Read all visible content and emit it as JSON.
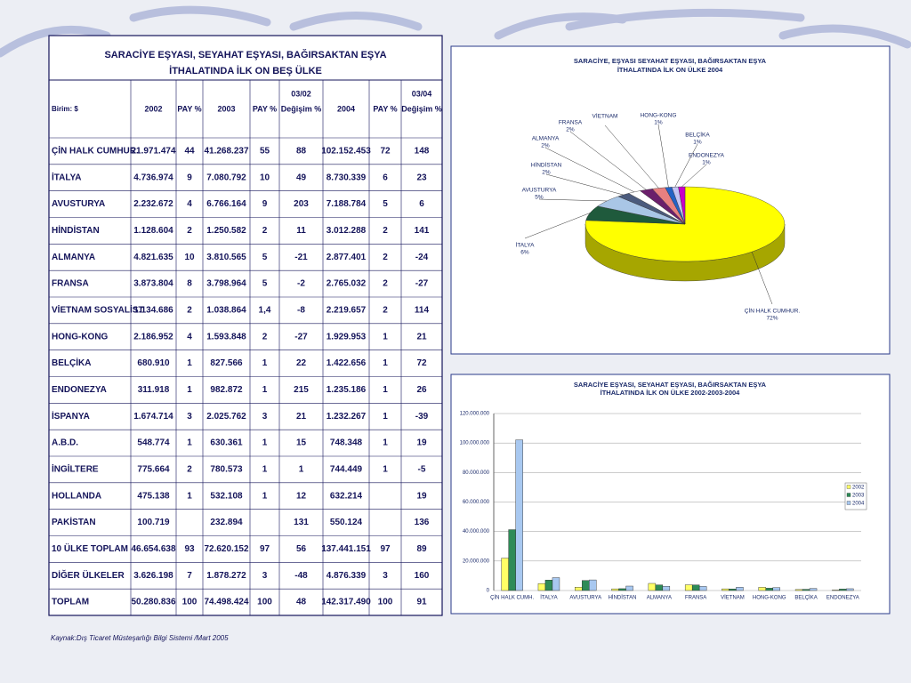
{
  "table": {
    "title": [
      "SARACİYE EŞYASI, SEYAHAT EŞYASI, BAĞIRSAKTAN EŞYA",
      "İTHALATINDA İLK ON  BEŞ ÜLKE"
    ],
    "headers": [
      [
        "Birim: $"
      ],
      [
        "2002"
      ],
      [
        "PAY %"
      ],
      [
        "2003"
      ],
      [
        "PAY %"
      ],
      [
        "03/02",
        "Değişim %"
      ],
      [
        "2004"
      ],
      [
        "PAY %"
      ],
      [
        "03/04",
        "Değişim %"
      ]
    ],
    "rows": [
      [
        "ÇİN HALK CUMHUR.",
        "21.971.474",
        "44",
        "41.268.237",
        "55",
        "88",
        "102.152.453",
        "72",
        "148"
      ],
      [
        "İTALYA",
        "4.736.974",
        "9",
        "7.080.792",
        "10",
        "49",
        "8.730.339",
        "6",
        "23"
      ],
      [
        "AVUSTURYA",
        "2.232.672",
        "4",
        "6.766.164",
        "9",
        "203",
        "7.188.784",
        "5",
        "6"
      ],
      [
        "HİNDİSTAN",
        "1.128.604",
        "2",
        "1.250.582",
        "2",
        "11",
        "3.012.288",
        "2",
        "141"
      ],
      [
        "ALMANYA",
        "4.821.635",
        "10",
        "3.810.565",
        "5",
        "-21",
        "2.877.401",
        "2",
        "-24"
      ],
      [
        "FRANSA",
        "3.873.804",
        "8",
        "3.798.964",
        "5",
        "-2",
        "2.765.032",
        "2",
        "-27"
      ],
      [
        "VİETNAM SOSYALİST",
        "1.134.686",
        "2",
        "1.038.864",
        "1,4",
        "-8",
        "2.219.657",
        "2",
        "114"
      ],
      [
        "HONG-KONG",
        "2.186.952",
        "4",
        "1.593.848",
        "2",
        "-27",
        "1.929.953",
        "1",
        "21"
      ],
      [
        "BELÇİKA",
        "680.910",
        "1",
        "827.566",
        "1",
        "22",
        "1.422.656",
        "1",
        "72"
      ],
      [
        "ENDONEZYA",
        "311.918",
        "1",
        "982.872",
        "1",
        "215",
        "1.235.186",
        "1",
        "26"
      ],
      [
        "İSPANYA",
        "1.674.714",
        "3",
        "2.025.762",
        "3",
        "21",
        "1.232.267",
        "1",
        "-39"
      ],
      [
        "A.B.D.",
        "548.774",
        "1",
        "630.361",
        "1",
        "15",
        "748.348",
        "1",
        "19"
      ],
      [
        "İNGİLTERE",
        "775.664",
        "2",
        "780.573",
        "1",
        "1",
        "744.449",
        "1",
        "-5"
      ],
      [
        "HOLLANDA",
        "475.138",
        "1",
        "532.108",
        "1",
        "12",
        "632.214",
        null,
        "19"
      ],
      [
        "PAKİSTAN",
        "100.719",
        null,
        "232.894",
        null,
        "131",
        "550.124",
        null,
        "136"
      ],
      [
        "10 ÜLKE TOPLAM",
        "46.654.638",
        "93",
        "72.620.152",
        "97",
        "56",
        "137.441.151",
        "97",
        "89"
      ],
      [
        "DİĞER ÜLKELER",
        "3.626.198",
        "7",
        "1.878.272",
        "3",
        "-48",
        "4.876.339",
        "3",
        "160"
      ],
      [
        "TOPLAM",
        "50.280.836",
        "100",
        "74.498.424",
        "100",
        "48",
        "142.317.490",
        "100",
        "91"
      ]
    ]
  },
  "chart_data": [
    {
      "type": "pie",
      "title": [
        "SARACİYE, EŞYASI SEYAHAT EŞYASI, BAĞIRSAKTAN EŞYA",
        "İTHALATINDA İLK ON  ÜLKE 2004"
      ],
      "categories": [
        "ÇİN HALK CUMHUR.",
        "İTALYA",
        "AVUSTURYA",
        "HİNDİSTAN",
        "ALMANYA",
        "FRANSA",
        "VİETNAM",
        "HONG-KONG",
        "BELÇİKA",
        "ENDONEZYA"
      ],
      "values": [
        72,
        6,
        5,
        2,
        2,
        2,
        2,
        1,
        1,
        1
      ],
      "value_labels": [
        "72%",
        "6%",
        "5%",
        "2%",
        "2%",
        "2%",
        null,
        "1%",
        "1%",
        "1%"
      ],
      "colors": [
        "#ffff00",
        "#1f5a3c",
        "#a9c6e6",
        "#4b5b7d",
        "#ffffff",
        "#6b1f6b",
        "#e88080",
        "#2462c4",
        "#c4c4f4",
        "#c800c8"
      ]
    },
    {
      "type": "bar",
      "title": [
        "SARACİYE EŞYASI, SEYAHAT EŞYASI, BAĞIRSAKTAN EŞYA",
        "İTHALATINDA İLK ON  ÜLKE 2002-2003-2004"
      ],
      "categories": [
        "ÇİN HALK CUMH.",
        "İTALYA",
        "AVUSTURYA",
        "HİNDİSTAN",
        "ALMANYA",
        "FRANSA",
        "VİETNAM",
        "HONG-KONG",
        "BELÇİKA",
        "ENDONEZYA"
      ],
      "series": [
        {
          "name": "2002",
          "color": "#ffff66",
          "values": [
            21971474,
            4736974,
            2232672,
            1128604,
            4821635,
            3873804,
            1134686,
            2186952,
            680910,
            311918
          ]
        },
        {
          "name": "2003",
          "color": "#2e8b57",
          "values": [
            41268237,
            7080792,
            6766164,
            1250582,
            3810565,
            3798964,
            1038864,
            1593848,
            827566,
            982872
          ]
        },
        {
          "name": "2004",
          "color": "#a8c8f0",
          "values": [
            102152453,
            8730339,
            7188784,
            3012288,
            2877401,
            2765032,
            2219657,
            1929953,
            1422656,
            1235186
          ]
        }
      ],
      "ylim": [
        0,
        120000000
      ],
      "yticks": [
        0,
        {
          "value": 20000000,
          "label": "20.000.000"
        },
        {
          "value": 40000000,
          "label": "40.000.000"
        },
        {
          "value": 60000000,
          "label": "60.000.000"
        },
        {
          "value": 80000000,
          "label": "80.000.000"
        },
        {
          "value": 100000000,
          "label": "100.000.000"
        },
        {
          "value": 120000000,
          "label": "120.000.000"
        }
      ],
      "grid": true,
      "legend": "right"
    }
  ],
  "source": "Kaynak:Dış Ticaret Müsteşarlığı Bilgi Sistemi /Mart 2005"
}
